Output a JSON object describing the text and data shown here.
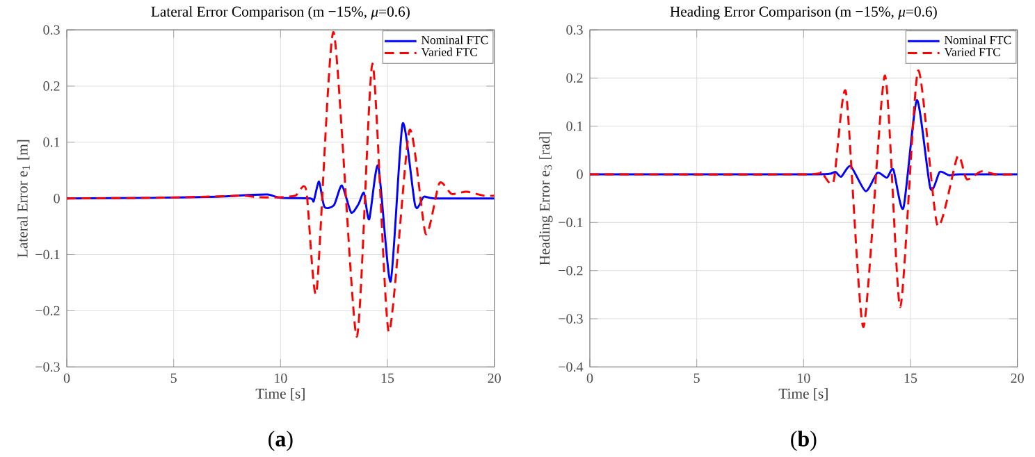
{
  "chart_data": [
    {
      "type": "line",
      "title": "Lateral Error Comparison (m −15%, *μ*=0.6)",
      "xlabel": "Time [s]",
      "ylabel": "Lateral Error e$_{1}$ [m]",
      "annotations": [
        "(**a**)"
      ],
      "xlim": [
        0,
        20
      ],
      "ylim": [
        -0.3,
        0.3
      ],
      "xticks": [
        0,
        5,
        10,
        15,
        20
      ],
      "yticks": [
        {
          "value": -0.3,
          "label": "−0.3"
        },
        {
          "value": -0.2,
          "label": "−0.2"
        },
        {
          "value": -0.1,
          "label": "−0.1"
        },
        0,
        0.1,
        0.2,
        0.3
      ],
      "grid": true,
      "legend": "top right",
      "series": [
        {
          "name": "Nominal FTC",
          "color": "#0000ff",
          "line_style": "solid",
          "x": [
            0,
            4,
            7,
            8.5,
            9.4,
            10,
            11.4,
            11.55,
            11.8,
            12.05,
            12.5,
            12.87,
            13.3,
            13.65,
            13.9,
            14.15,
            14.57,
            15.15,
            15.71,
            16.3,
            16.7,
            17.2,
            20
          ],
          "values": [
            0,
            0.001,
            0.003,
            0.006,
            0.007,
            0.001,
            0,
            -0.005,
            0.03,
            -0.015,
            -0.012,
            0.023,
            -0.025,
            -0.01,
            0.01,
            -0.037,
            0.058,
            -0.148,
            0.133,
            -0.013,
            0.003,
            0,
            0
          ]
        },
        {
          "name": "Varied FTC",
          "color": "#ff0000",
          "line_style": "dashed",
          "x": [
            0,
            4,
            7.5,
            8.2,
            9,
            10,
            10.7,
            11.2,
            11.68,
            12.48,
            13.56,
            14.3,
            15.06,
            16.03,
            16.79,
            17.43,
            18.0,
            18.7,
            19.5,
            20
          ],
          "values": [
            0,
            0.001,
            0.004,
            0.005,
            0.002,
            0.002,
            0.005,
            0.015,
            -0.167,
            0.296,
            -0.246,
            0.24,
            -0.237,
            0.121,
            -0.063,
            0.027,
            0.008,
            0.012,
            0.005,
            0.005
          ]
        }
      ]
    },
    {
      "type": "line",
      "title": "Heading Error Comparison (m −15%, *μ*=0.6)",
      "xlabel": "Time [s]",
      "ylabel": "Heading Error e$_{3}$ [rad]",
      "annotations": [
        "(**b**)"
      ],
      "xlim": [
        0,
        20
      ],
      "ylim": [
        -0.4,
        0.3
      ],
      "xticks": [
        0,
        5,
        10,
        15,
        20
      ],
      "yticks": [
        {
          "value": -0.4,
          "label": "−0.4"
        },
        {
          "value": -0.3,
          "label": "−0.3"
        },
        {
          "value": -0.2,
          "label": "−0.2"
        },
        {
          "value": -0.1,
          "label": "−0.1"
        },
        0,
        0.1,
        0.2,
        0.3
      ],
      "grid": true,
      "legend": "top right",
      "series": [
        {
          "name": "Nominal FTC",
          "color": "#0000ff",
          "line_style": "solid",
          "x": [
            0,
            10,
            11.2,
            11.5,
            11.76,
            12.2,
            12.9,
            13.45,
            13.9,
            14.2,
            14.67,
            15.3,
            15.93,
            16.37,
            16.8,
            17.3,
            20
          ],
          "values": [
            0,
            0,
            0.001,
            0.005,
            -0.005,
            0.017,
            -0.035,
            0.003,
            -0.007,
            0.01,
            -0.07,
            0.154,
            -0.029,
            0.005,
            -0.002,
            0,
            0
          ]
        },
        {
          "name": "Varied FTC",
          "color": "#ff0000",
          "line_style": "dashed",
          "x": [
            0,
            10,
            10.8,
            11.4,
            11.98,
            12.8,
            13.8,
            14.52,
            15.35,
            16.26,
            17.2,
            17.63,
            18.3,
            19,
            20
          ],
          "values": [
            0,
            0,
            0.005,
            -0.015,
            0.171,
            -0.317,
            0.205,
            -0.276,
            0.215,
            -0.106,
            0.037,
            -0.01,
            0.006,
            0,
            0
          ]
        }
      ]
    }
  ]
}
